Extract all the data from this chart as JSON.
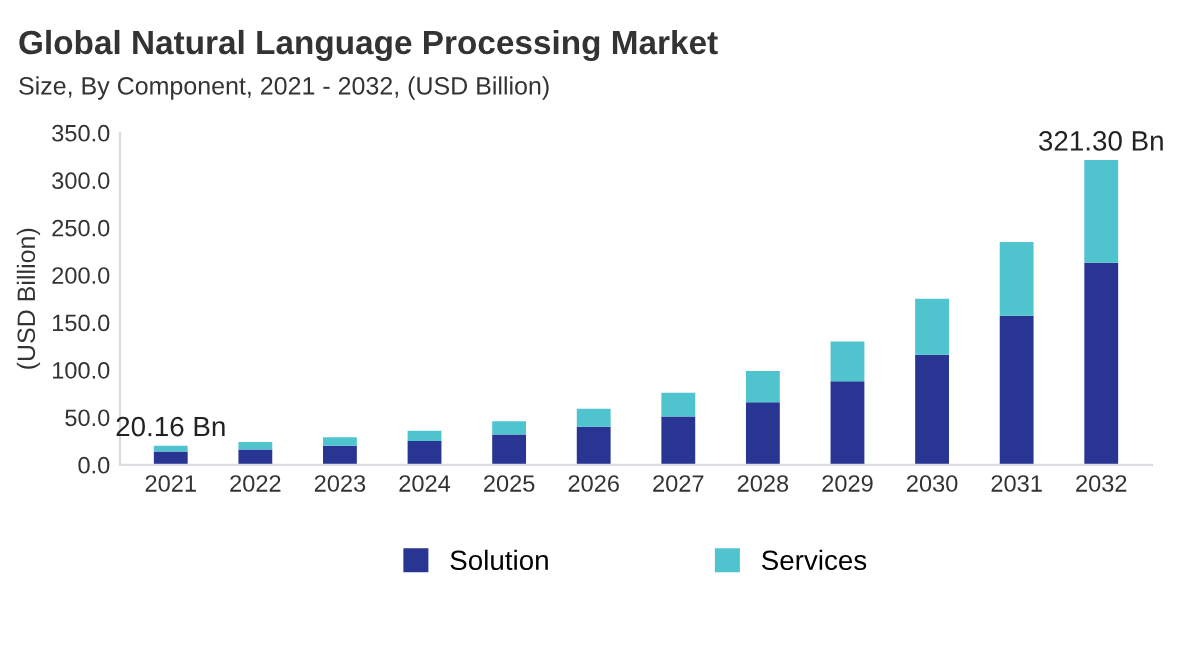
{
  "chart_data": {
    "type": "bar",
    "title": "Global Natural Language Processing Market",
    "subtitle": "Size, By Component, 2021 - 2032, (USD Billion)",
    "ylabel": "(USD Billion)",
    "categories": [
      "2021",
      "2022",
      "2023",
      "2024",
      "2025",
      "2026",
      "2027",
      "2028",
      "2029",
      "2030",
      "2031",
      "2032"
    ],
    "stacked": true,
    "series": [
      {
        "name": "Solution",
        "color": "#283593",
        "values": [
          14,
          16,
          20,
          25,
          32,
          40,
          51,
          66,
          88,
          116,
          157,
          213
        ]
      },
      {
        "name": "Services",
        "color": "#4fc4cf",
        "values": [
          6.16,
          8,
          9,
          11,
          14,
          19,
          25,
          33,
          42,
          59,
          78,
          108.3
        ]
      }
    ],
    "totals": [
      "20.16 Bn",
      null,
      null,
      null,
      null,
      null,
      null,
      null,
      null,
      null,
      null,
      "321.30 Bn"
    ],
    "ylim": [
      0,
      350
    ],
    "yticks": [
      {
        "value": 0,
        "label": "0.0"
      },
      {
        "value": 50,
        "label": "50.0"
      },
      {
        "value": 100,
        "label": "100.0"
      },
      {
        "value": 150,
        "label": "150.0"
      },
      {
        "value": 200,
        "label": "200.0"
      },
      {
        "value": 250,
        "label": "250.0"
      },
      {
        "value": 300,
        "label": "300.0"
      },
      {
        "value": 350,
        "label": "350.0"
      }
    ],
    "grid": false,
    "legend": "bottom"
  }
}
